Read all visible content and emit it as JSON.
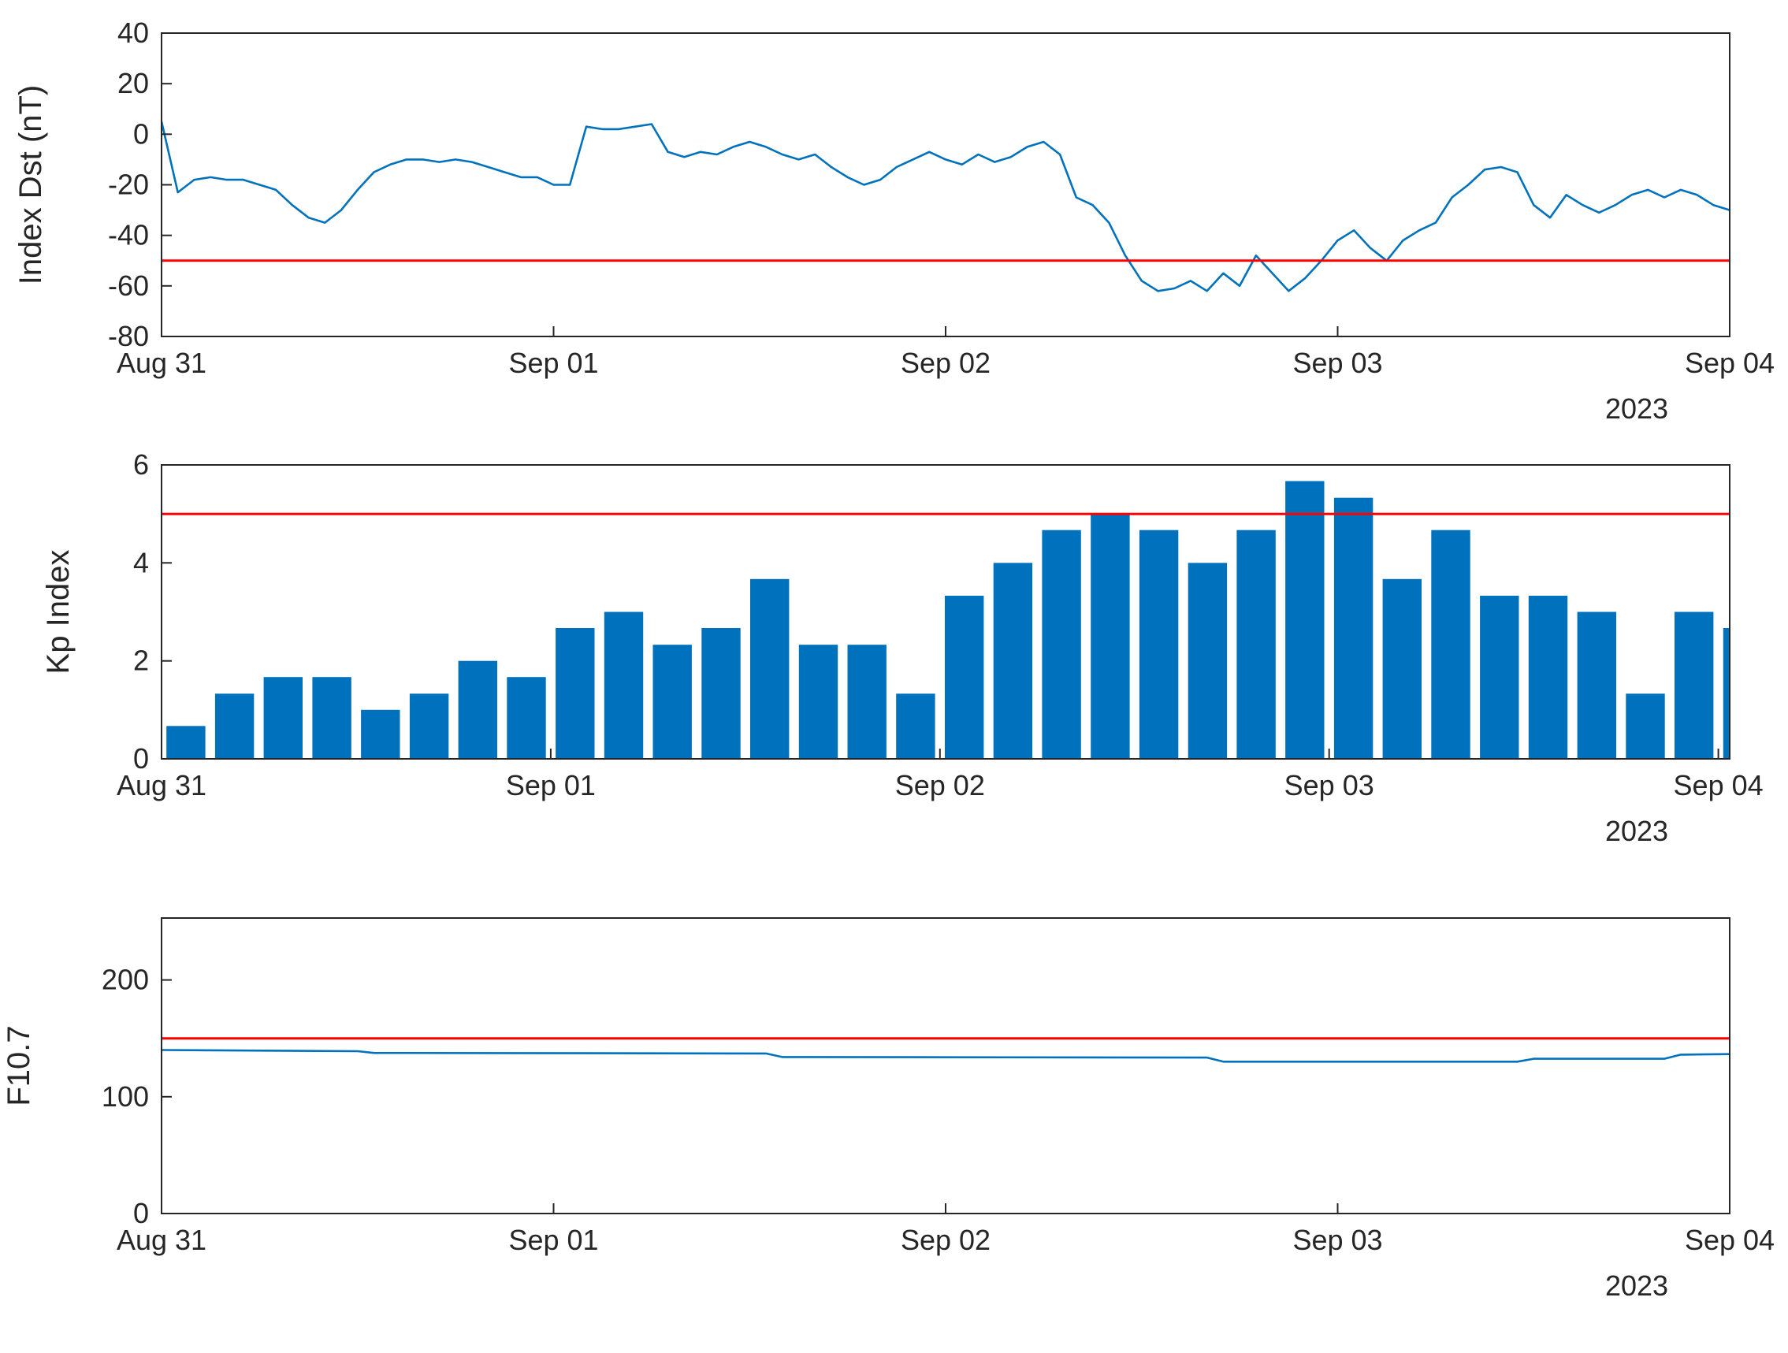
{
  "figure": {
    "year_label": "2023",
    "colors": {
      "series_blue": "#0072BD",
      "threshold_red": "#FF0000",
      "axis_gray": "#262626",
      "background": "#FFFFFF"
    }
  },
  "chart_data": [
    {
      "name": "dst-index",
      "type": "line",
      "title": "",
      "xlabel": "",
      "ylabel": "Index Dst (nT)",
      "ylim": [
        -80,
        40
      ],
      "yticks": [
        -80,
        -60,
        -40,
        -20,
        0,
        20,
        40
      ],
      "xlim": [
        0,
        96
      ],
      "xticks": [
        0,
        24,
        48,
        72,
        96
      ],
      "xtick_labels": [
        "Aug 31",
        "Sep 01",
        "Sep 02",
        "Sep 03",
        "Sep 04"
      ],
      "x_unit": "hours from Aug 31 2023 00:00 UT",
      "threshold": -50,
      "grid": false,
      "x_start": 0,
      "x_step": 1,
      "y": [
        5,
        -23,
        -18,
        -17,
        -18,
        -18,
        -20,
        -22,
        -28,
        -33,
        -35,
        -30,
        -22,
        -15,
        -12,
        -10,
        -10,
        -11,
        -10,
        -11,
        -13,
        -15,
        -17,
        -17,
        -20,
        -20,
        3,
        2,
        2,
        3,
        4,
        -7,
        -9,
        -7,
        -8,
        -5,
        -3,
        -5,
        -8,
        -10,
        -8,
        -13,
        -17,
        -20,
        -18,
        -13,
        -10,
        -7,
        -10,
        -12,
        -8,
        -11,
        -9,
        -5,
        -3,
        -8,
        -25,
        -28,
        -35,
        -48,
        -58,
        -62,
        -61,
        -58,
        -62,
        -55,
        -60,
        -48,
        -55,
        -62,
        -57,
        -50,
        -42,
        -38,
        -45,
        -50,
        -42,
        -38,
        -35,
        -25,
        -20,
        -14,
        -13,
        -15,
        -28,
        -33,
        -24,
        -28,
        -31,
        -28,
        -24,
        -22,
        -25,
        -22,
        -24,
        -28,
        -30
      ]
    },
    {
      "name": "kp-index",
      "type": "bar",
      "title": "",
      "xlabel": "",
      "ylabel": "Kp Index",
      "ylim": [
        0,
        6
      ],
      "yticks": [
        0,
        2,
        4,
        6
      ],
      "xlim": [
        0,
        96.7
      ],
      "xticks": [
        0,
        24,
        48,
        72,
        96
      ],
      "xtick_labels": [
        "Aug 31",
        "Sep 01",
        "Sep 02",
        "Sep 03",
        "Sep 04"
      ],
      "x_unit": "hours from Aug 31 2023 00:00 UT, 3-hourly bars",
      "threshold": 5,
      "grid": false,
      "x_start": 1.5,
      "x_step": 3,
      "bar_width": 2.4,
      "values": [
        0.67,
        1.33,
        1.67,
        1.67,
        1.0,
        1.33,
        2.0,
        1.67,
        2.67,
        3.0,
        2.33,
        2.67,
        3.67,
        2.33,
        2.33,
        1.33,
        3.33,
        4.0,
        4.67,
        5.0,
        4.67,
        4.0,
        4.67,
        5.67,
        5.33,
        3.67,
        4.67,
        3.33,
        3.33,
        3.0,
        1.33,
        3.0,
        2.67
      ]
    },
    {
      "name": "f107",
      "type": "line",
      "title": "",
      "xlabel": "",
      "ylabel": "F10.7",
      "ylim": [
        0,
        253
      ],
      "yticks": [
        0,
        100,
        200
      ],
      "xlim": [
        0,
        96
      ],
      "xticks": [
        0,
        24,
        48,
        72,
        96
      ],
      "xtick_labels": [
        "Aug 31",
        "Sep 01",
        "Sep 02",
        "Sep 03",
        "Sep 04"
      ],
      "x_unit": "hours from Aug 31 2023 00:00 UT",
      "threshold": 150,
      "grid": false,
      "x": [
        0,
        12,
        13,
        37,
        38,
        64,
        65,
        83,
        84,
        92,
        93,
        96
      ],
      "y": [
        140,
        139,
        137.5,
        137,
        134,
        133.5,
        130,
        130,
        132.5,
        132.5,
        136,
        136.5
      ]
    }
  ]
}
